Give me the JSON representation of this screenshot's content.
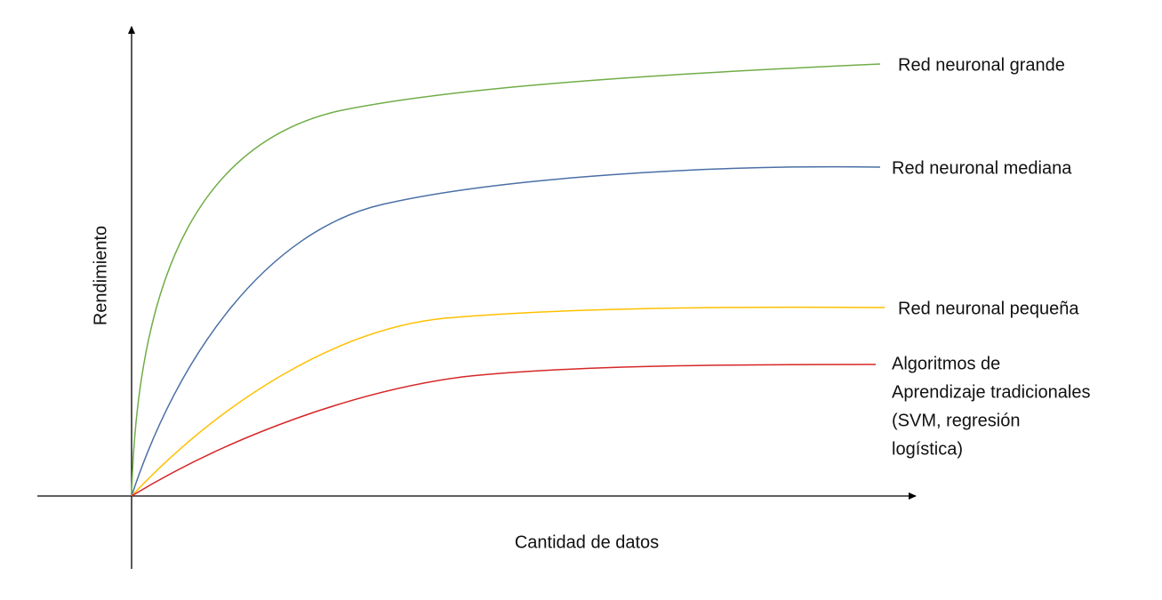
{
  "axes": {
    "x_label": "Cantidad de datos",
    "y_label": "Rendimiento"
  },
  "curves": [
    {
      "label": [
        "Red neuronal grande"
      ]
    },
    {
      "label": [
        "Red neuronal mediana"
      ]
    },
    {
      "label": [
        "Red neuronal pequeña"
      ]
    },
    {
      "label": [
        "Algoritmos de",
        "Aprendizaje tradicionales",
        "(SVM, regresión",
        "logística)"
      ]
    }
  ]
}
